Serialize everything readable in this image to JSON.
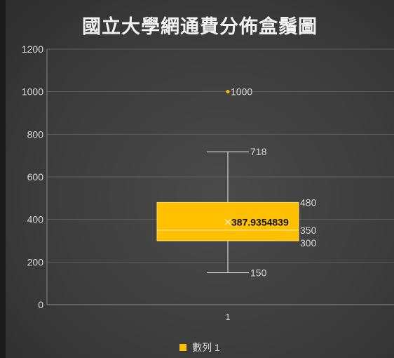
{
  "chart_data": {
    "type": "box",
    "title": "國立大學網通費分佈盒鬚圖",
    "categories": [
      "1"
    ],
    "ylim": [
      0,
      1200
    ],
    "yticks": [
      0,
      200,
      400,
      600,
      800,
      1000,
      1200
    ],
    "grid": true,
    "legend_position": "bottom",
    "series": [
      {
        "name": "數列 1",
        "color": "#ffc000",
        "min": 150,
        "q1": 300,
        "median": 350,
        "mean": 387.9354839,
        "q3": 480,
        "max": 718,
        "outliers": [
          1000
        ]
      }
    ],
    "data_labels": {
      "min": "150",
      "q1": "300",
      "median": "350",
      "mean": "387.9354839",
      "q3": "480",
      "max": "718",
      "outlier": "1000"
    }
  }
}
